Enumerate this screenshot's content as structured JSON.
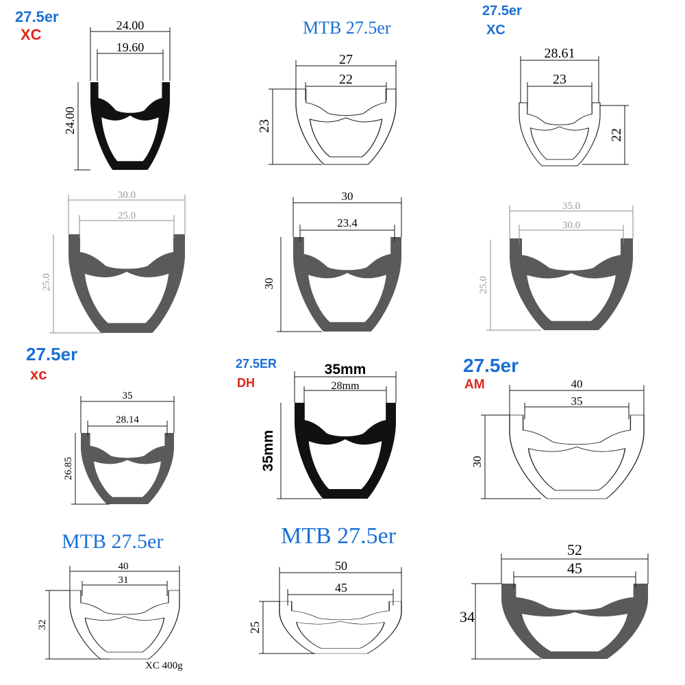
{
  "colors": {
    "heading_blue": "#1a6fd6",
    "heading_red": "#e0251b",
    "rim_black": "#111111",
    "rim_grey": "#5a5a5a",
    "outline": "#222222",
    "dimension_grey": "#9a9a9a"
  },
  "profiles": [
    {
      "id": "p1",
      "headings": [
        "27.5er",
        "XC"
      ],
      "style": "black",
      "outer_width": "24.00",
      "inner_width": "19.60",
      "height": "24.00",
      "note": ""
    },
    {
      "id": "p2",
      "headings": [
        "MTB 27.5er"
      ],
      "style": "outline",
      "outer_width": "27",
      "inner_width": "22",
      "height": "23",
      "note": ""
    },
    {
      "id": "p3",
      "headings": [
        "27.5er",
        "XC"
      ],
      "style": "outline",
      "outer_width": "28.61",
      "inner_width": "23",
      "height": "22",
      "note": ""
    },
    {
      "id": "p4",
      "headings": [],
      "style": "grey",
      "outer_width": "30.0",
      "inner_width": "25.0",
      "height": "25.0",
      "note": ""
    },
    {
      "id": "p5",
      "headings": [],
      "style": "grey",
      "outer_width": "30",
      "inner_width": "23.4",
      "height": "30",
      "note": ""
    },
    {
      "id": "p6",
      "headings": [],
      "style": "grey",
      "outer_width": "35.0",
      "inner_width": "30.0",
      "height": "25.0",
      "note": ""
    },
    {
      "id": "p7",
      "headings": [
        "27.5er",
        "xc"
      ],
      "style": "grey",
      "outer_width": "35",
      "inner_width": "28.14",
      "height": "26.85",
      "note": ""
    },
    {
      "id": "p8",
      "headings": [
        "27.5ER",
        "DH"
      ],
      "style": "black",
      "outer_width": "35mm",
      "inner_width": "28mm",
      "height": "35mm",
      "note": ""
    },
    {
      "id": "p9",
      "headings": [
        "27.5er",
        "AM"
      ],
      "style": "outline",
      "outer_width": "40",
      "inner_width": "35",
      "height": "30",
      "note": ""
    },
    {
      "id": "p10",
      "headings": [
        "MTB 27.5er"
      ],
      "style": "outline",
      "outer_width": "40",
      "inner_width": "31",
      "height": "32",
      "note": "XC 400g"
    },
    {
      "id": "p11",
      "headings": [
        "MTB 27.5er"
      ],
      "style": "outline",
      "outer_width": "50",
      "inner_width": "45",
      "height": "25",
      "note": ""
    },
    {
      "id": "p12",
      "headings": [],
      "style": "grey",
      "outer_width": "52",
      "inner_width": "45",
      "height": "34",
      "note": ""
    }
  ]
}
